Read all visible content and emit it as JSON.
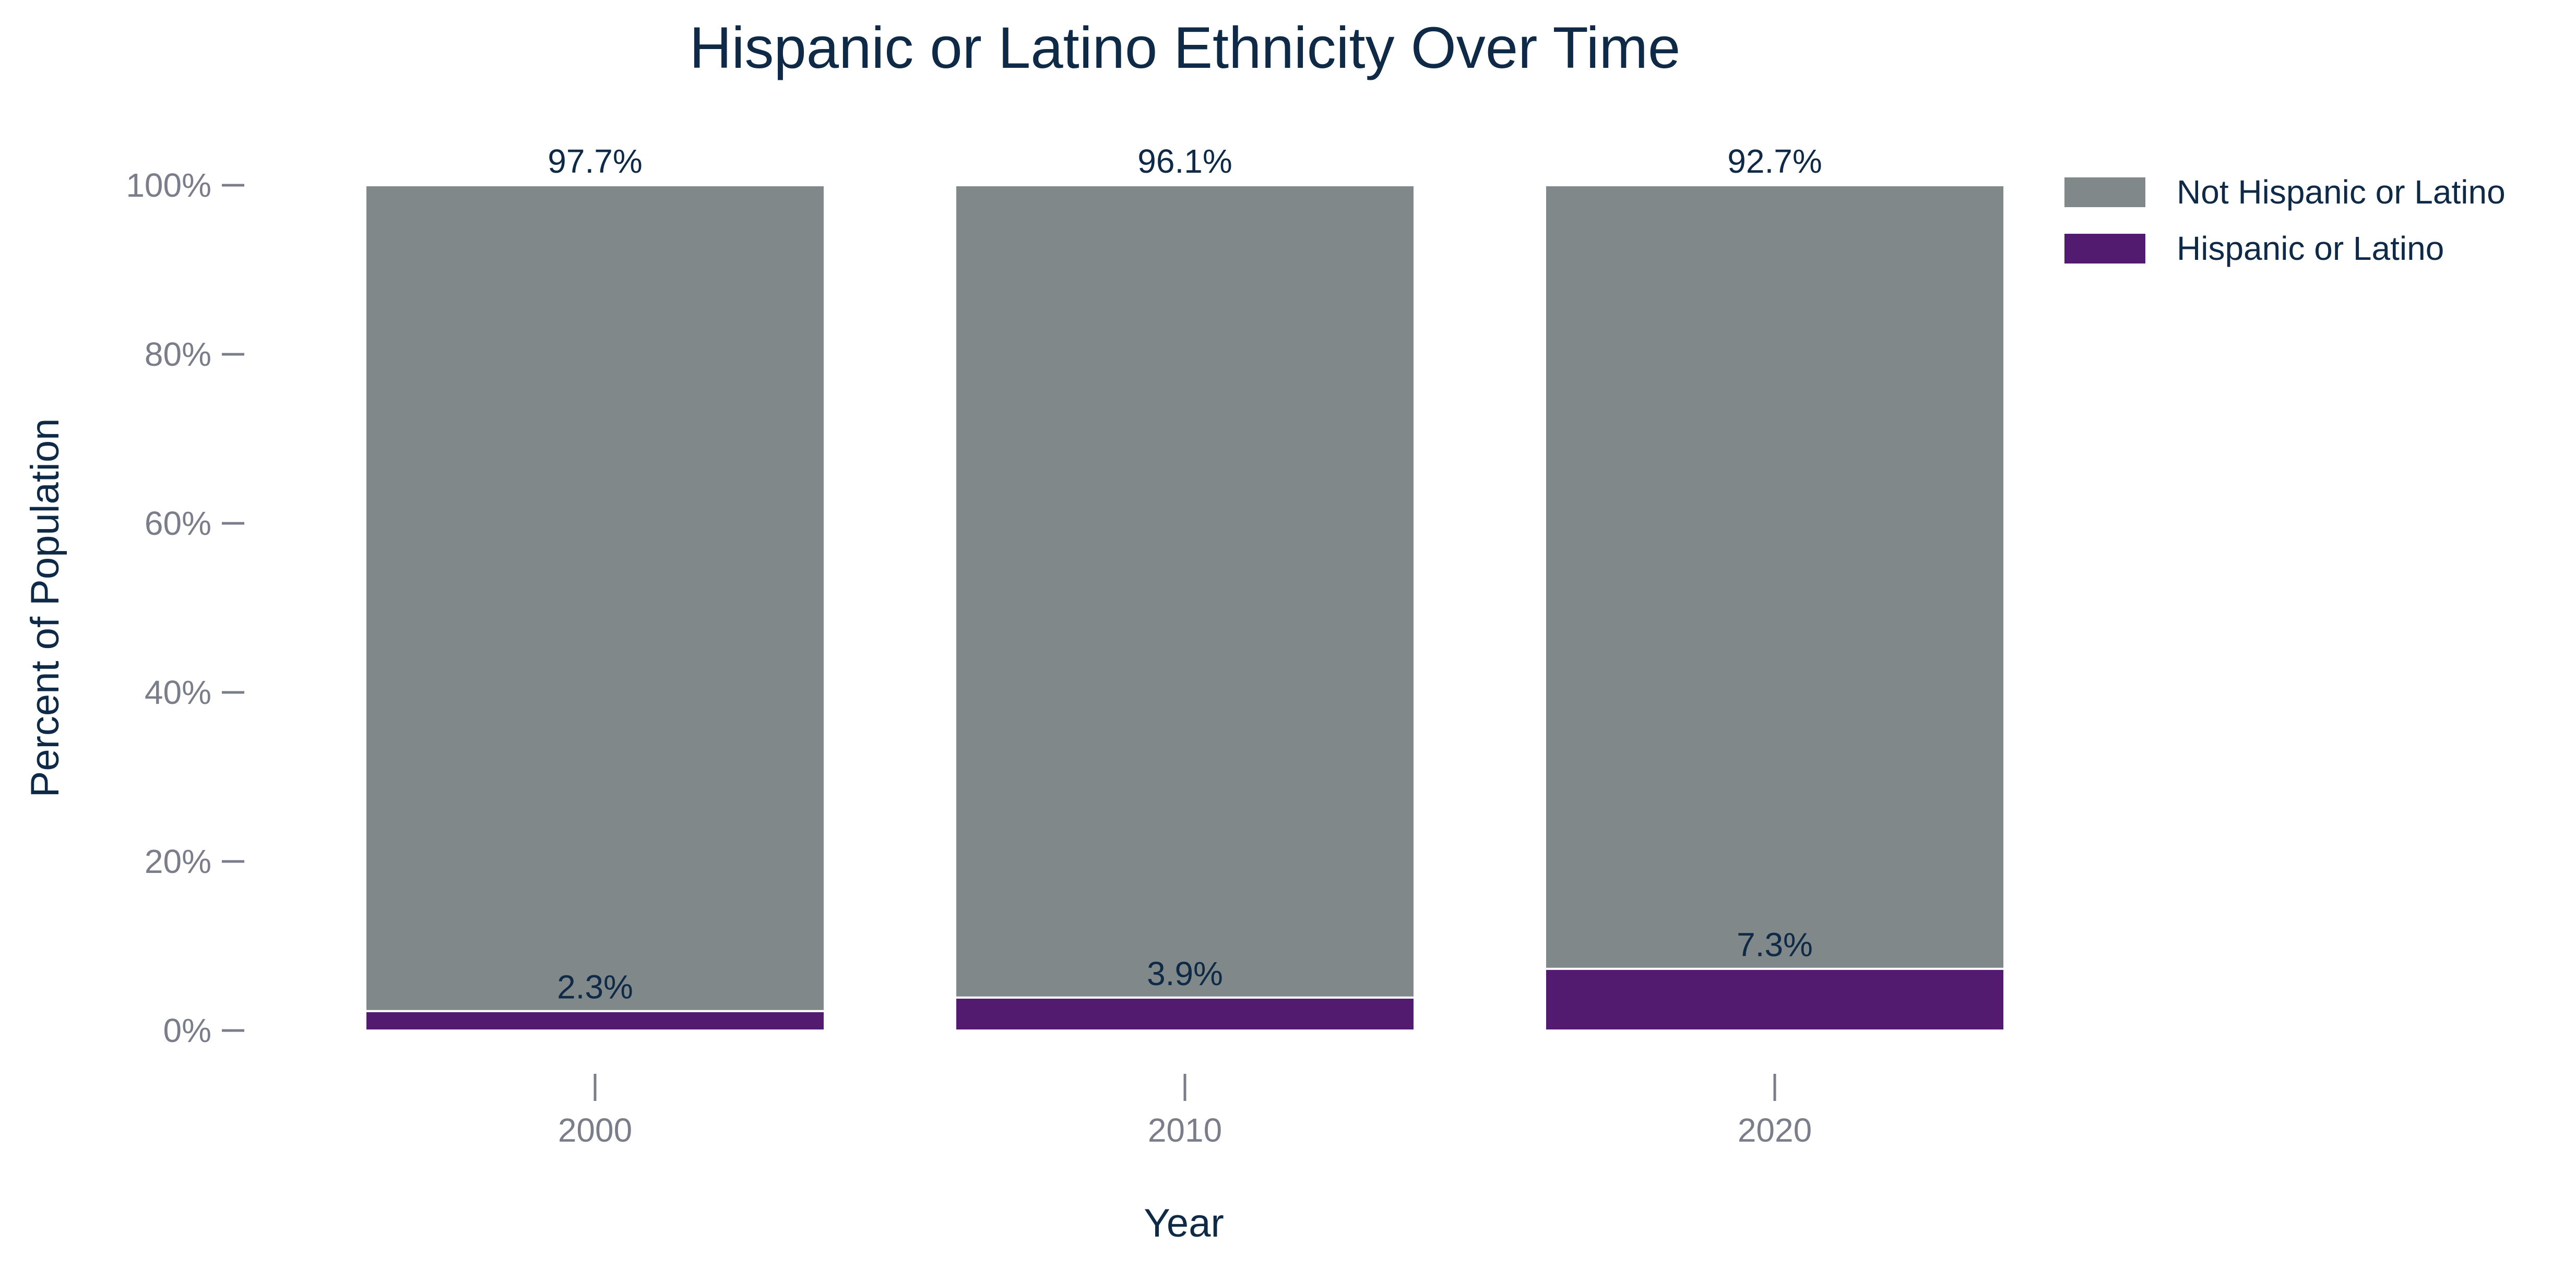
{
  "chart_data": {
    "type": "bar",
    "stacked": true,
    "title": "Hispanic or Latino Ethnicity Over Time",
    "xlabel": "Year",
    "ylabel": "Percent of Population",
    "categories": [
      "2000",
      "2010",
      "2020"
    ],
    "ylim": [
      0,
      100
    ],
    "yticks": [
      "0%",
      "20%",
      "40%",
      "60%",
      "80%",
      "100%"
    ],
    "grid": false,
    "legend_position": "top-right",
    "series": [
      {
        "name": "Hispanic or Latino",
        "color": "#531b6f",
        "values": [
          2.3,
          3.9,
          7.3
        ],
        "labels": [
          "2.3%",
          "3.9%",
          "7.3%"
        ]
      },
      {
        "name": "Not Hispanic or Latino",
        "color": "#808889",
        "values": [
          97.7,
          96.1,
          92.7
        ],
        "labels": [
          "97.7%",
          "96.1%",
          "92.7%"
        ]
      }
    ],
    "legend_order": [
      1,
      0
    ]
  }
}
